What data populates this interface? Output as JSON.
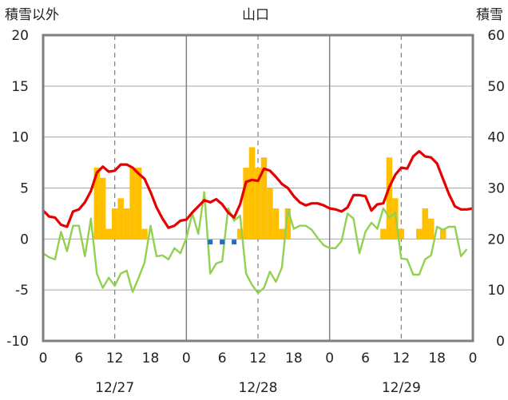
{
  "chart_data": {
    "type": "bar+line",
    "title": "山口",
    "ylabel_left": "積雪以外",
    "ylabel_right": "積雪",
    "ylim_left": [
      -10,
      20
    ],
    "ylim_right": [
      0,
      60
    ],
    "yticks_left": [
      "20",
      "15",
      "10",
      "5",
      "0",
      "-5",
      "-10"
    ],
    "yticks_right": [
      "60",
      "50",
      "40",
      "30",
      "20",
      "10",
      "0"
    ],
    "xlim_hours": [
      0,
      72
    ],
    "xtick_hours": [
      0,
      6,
      12,
      18,
      24,
      30,
      36,
      42,
      48,
      54,
      60,
      66,
      72
    ],
    "xtick_labels": [
      "0",
      "6",
      "12",
      "18",
      "0",
      "6",
      "12",
      "18",
      "0",
      "6",
      "12",
      "18",
      "0"
    ],
    "date_labels": [
      "12/27",
      "12/28",
      "12/29"
    ],
    "grid": {
      "day_lines": true,
      "dashed_noon_lines": true,
      "horizontal_lines": true
    },
    "colors": {
      "bars": "#ffc000",
      "temperature": "#e60000",
      "green_line": "#92d050",
      "blue_marks": "#1f6fc0",
      "bottom_line": "#7030a0",
      "frame": "#7f7f7f"
    },
    "series": [
      {
        "kind": "bar",
        "axis": "left",
        "values": [
          {
            "h": 9,
            "v": 7
          },
          {
            "h": 10,
            "v": 6
          },
          {
            "h": 11,
            "v": 1
          },
          {
            "h": 12,
            "v": 3
          },
          {
            "h": 13,
            "v": 4
          },
          {
            "h": 14,
            "v": 3
          },
          {
            "h": 15,
            "v": 7
          },
          {
            "h": 16,
            "v": 7
          },
          {
            "h": 17,
            "v": 1
          },
          {
            "h": 33,
            "v": 1
          },
          {
            "h": 34,
            "v": 7
          },
          {
            "h": 35,
            "v": 9
          },
          {
            "h": 36,
            "v": 7
          },
          {
            "h": 37,
            "v": 8
          },
          {
            "h": 38,
            "v": 5
          },
          {
            "h": 39,
            "v": 3
          },
          {
            "h": 40,
            "v": 1
          },
          {
            "h": 41,
            "v": 3
          },
          {
            "h": 57,
            "v": 1
          },
          {
            "h": 58,
            "v": 8
          },
          {
            "h": 59,
            "v": 4
          },
          {
            "h": 60,
            "v": 1
          },
          {
            "h": 63,
            "v": 1
          },
          {
            "h": 64,
            "v": 3
          },
          {
            "h": 65,
            "v": 2
          },
          {
            "h": 67,
            "v": 1
          }
        ]
      },
      {
        "kind": "line",
        "axis": "left",
        "values": [
          2.8,
          2.2,
          2.1,
          1.4,
          1.2,
          2.7,
          2.9,
          3.6,
          4.7,
          6.5,
          7.1,
          6.6,
          6.7,
          7.3,
          7.3,
          7.0,
          6.4,
          5.9,
          4.6,
          3.1,
          2.0,
          1.1,
          1.3,
          1.8,
          1.9,
          2.6,
          3.2,
          3.8,
          3.6,
          3.9,
          3.4,
          2.6,
          2.1,
          3.4,
          5.6,
          5.8,
          5.7,
          6.9,
          6.7,
          6.1,
          5.4,
          5.0,
          4.2,
          3.6,
          3.3,
          3.5,
          3.5,
          3.3,
          3.0,
          2.9,
          2.7,
          3.1,
          4.3,
          4.3,
          4.2,
          2.8,
          3.4,
          3.5,
          5.1,
          6.3,
          7.0,
          6.9,
          8.1,
          8.6,
          8.1,
          8.0,
          7.4,
          5.9,
          4.4,
          3.2,
          2.9,
          2.9,
          3.0
        ]
      },
      {
        "kind": "line",
        "axis": "left",
        "values": [
          -1.4,
          -1.8,
          -2.0,
          0.7,
          -1.2,
          1.3,
          1.3,
          -1.7,
          2.0,
          -3.4,
          -4.8,
          -3.8,
          -4.6,
          -3.4,
          -3.1,
          -5.2,
          -3.8,
          -2.3,
          1.3,
          -1.7,
          -1.6,
          -2.0,
          -0.9,
          -1.4,
          0.1,
          2.5,
          0.5,
          4.6,
          -3.4,
          -2.4,
          -2.2,
          3.0,
          1.8,
          2.3,
          -3.4,
          -4.5,
          -5.3,
          -4.8,
          -3.2,
          -4.2,
          -2.8,
          2.9,
          1.0,
          1.3,
          1.3,
          0.9,
          0.1,
          -0.6,
          -0.9,
          -0.9,
          -0.2,
          2.5,
          2.0,
          -1.4,
          0.7,
          1.6,
          1.0,
          3.0,
          2.1,
          2.6,
          -1.9,
          -2.0,
          -3.5,
          -3.5,
          -2.0,
          -1.6,
          1.2,
          0.9,
          1.2,
          1.2,
          -1.7,
          -1.0
        ]
      },
      {
        "kind": "marker",
        "axis": "left",
        "values": [
          {
            "h": 28,
            "v": -0.3
          },
          {
            "h": 30,
            "v": -0.3
          },
          {
            "h": 32,
            "v": -0.3
          }
        ]
      },
      {
        "kind": "line",
        "axis": "right",
        "values": [
          {
            "h": 0,
            "v": 0
          },
          {
            "h": 72,
            "v": 0
          }
        ]
      }
    ]
  }
}
